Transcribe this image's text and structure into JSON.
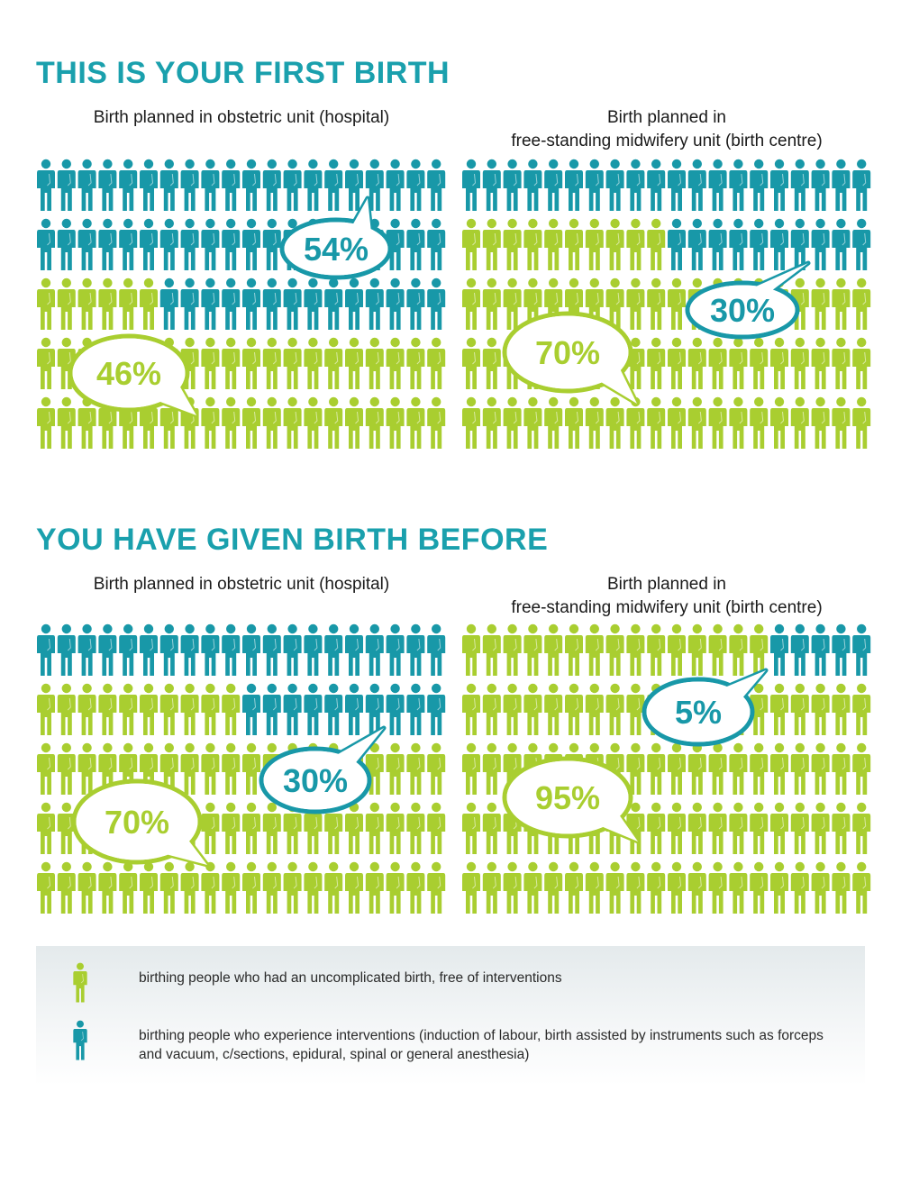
{
  "colors": {
    "teal": "#1898a8",
    "green": "#a9ce30",
    "title": "#1aa0ad",
    "bubble_teal_border": "#1898a8",
    "bubble_green_border": "#a9ce30"
  },
  "icon": "person-icon",
  "sections": [
    {
      "title": "THIS IS YOUR FIRST BIRTH",
      "panels": [
        {
          "title_lines": [
            "",
            "Birth planned in obstetric unit (hospital)"
          ]
        },
        {
          "title_lines": [
            "Birth planned in",
            "free-standing midwifery unit (birth centre)"
          ]
        }
      ]
    },
    {
      "title": "YOU HAVE GIVEN BIRTH BEFORE",
      "panels": [
        {
          "title_lines": [
            "",
            "Birth planned in obstetric unit (hospital)"
          ]
        },
        {
          "title_lines": [
            "Birth planned in",
            "free-standing midwifery unit (birth centre)"
          ]
        }
      ]
    }
  ],
  "chart_data": [
    {
      "type": "waffle",
      "title": "Birth planned in obstetric unit (hospital)",
      "rows": 5,
      "cols": 20,
      "series": [
        {
          "name": "birthing people who experience interventions",
          "color": "teal",
          "value": 54,
          "label": "54%"
        },
        {
          "name": "birthing people who had an uncomplicated birth",
          "color": "green",
          "value": 46,
          "label": "46%"
        }
      ]
    },
    {
      "type": "waffle",
      "title": "Birth planned in free-standing midwifery unit (birth centre)",
      "rows": 5,
      "cols": 20,
      "series": [
        {
          "name": "birthing people who experience interventions",
          "color": "teal",
          "value": 30,
          "label": "30%"
        },
        {
          "name": "birthing people who had an uncomplicated birth",
          "color": "green",
          "value": 70,
          "label": "70%"
        }
      ]
    },
    {
      "type": "waffle",
      "title": "Birth planned in obstetric unit (hospital)",
      "rows": 5,
      "cols": 20,
      "series": [
        {
          "name": "birthing people who experience interventions",
          "color": "teal",
          "value": 30,
          "label": "30%"
        },
        {
          "name": "birthing people who had an uncomplicated birth",
          "color": "green",
          "value": 70,
          "label": "70%"
        }
      ]
    },
    {
      "type": "waffle",
      "title": "Birth planned in free-standing midwifery unit (birth centre)",
      "rows": 5,
      "cols": 20,
      "series": [
        {
          "name": "birthing people who experience interventions",
          "color": "teal",
          "value": 5,
          "label": "5%"
        },
        {
          "name": "birthing people who had an uncomplicated birth",
          "color": "green",
          "value": 95,
          "label": "95%"
        }
      ]
    }
  ],
  "legend": {
    "items": [
      {
        "color": "green",
        "text": "birthing people who had an uncomplicated birth, free of interventions"
      },
      {
        "color": "teal",
        "text": "birthing people who experience interventions (induction of labour, birth assisted by instruments such as forceps and vacuum, c/sections, epidural, spinal or general anesthesia)"
      }
    ]
  }
}
